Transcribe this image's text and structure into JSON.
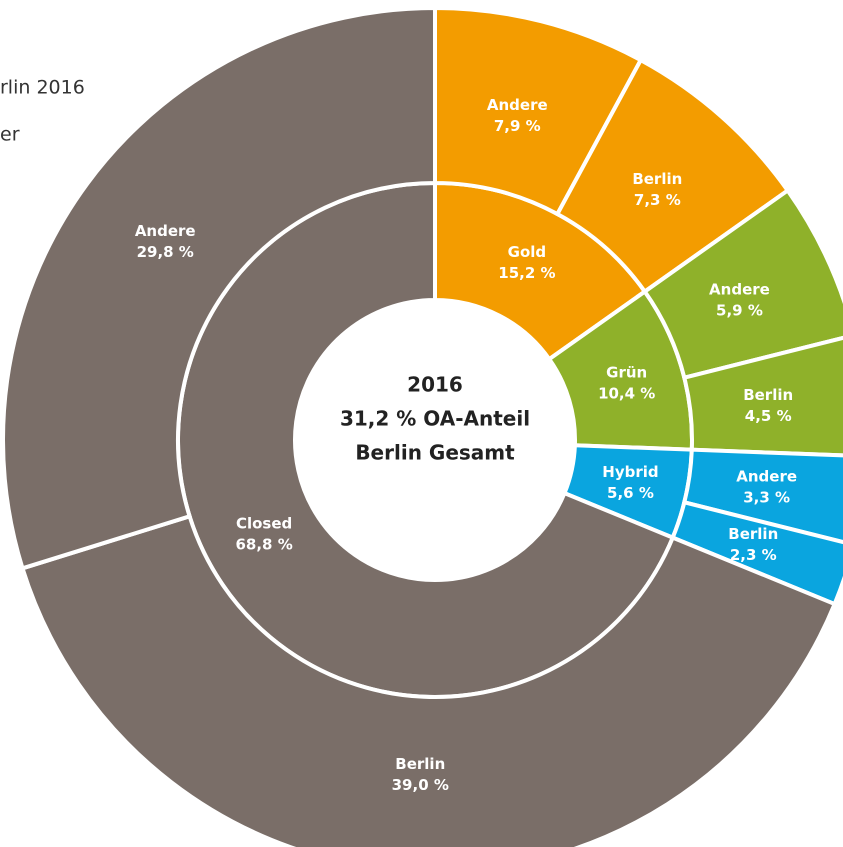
{
  "chart_data": {
    "type": "sunburst",
    "notes": [
      "rlin 2016",
      "er"
    ],
    "center_label": [
      "2016",
      "31,2 % OA-Anteil",
      "Berlin Gesamt"
    ],
    "categories": [
      "Gold",
      "Grün",
      "Hybrid",
      "Closed"
    ],
    "values": [
      15.2,
      10.4,
      5.6,
      68.8
    ],
    "value_labels": [
      "15,2 %",
      "10,4 %",
      "5,6 %",
      "68,8 %"
    ],
    "colors": [
      "#f39c00",
      "#8fb12a",
      "#0aa5df",
      "#7a6e68"
    ],
    "children": [
      {
        "categories": [
          "Andere",
          "Berlin"
        ],
        "values": [
          7.9,
          7.3
        ],
        "value_labels": [
          "7,9 %",
          "7,3 %"
        ]
      },
      {
        "categories": [
          "Andere",
          "Berlin"
        ],
        "values": [
          5.9,
          4.5
        ],
        "value_labels": [
          "5,9 %",
          "4,5 %"
        ]
      },
      {
        "categories": [
          "Andere",
          "Berlin"
        ],
        "values": [
          3.3,
          2.3
        ],
        "value_labels": [
          "3,3 %",
          "2,3 %"
        ]
      },
      {
        "categories": [
          "Berlin",
          "Andere"
        ],
        "values": [
          39.0,
          29.8
        ],
        "value_labels": [
          "39,0 %",
          "29,8 %"
        ]
      }
    ]
  }
}
